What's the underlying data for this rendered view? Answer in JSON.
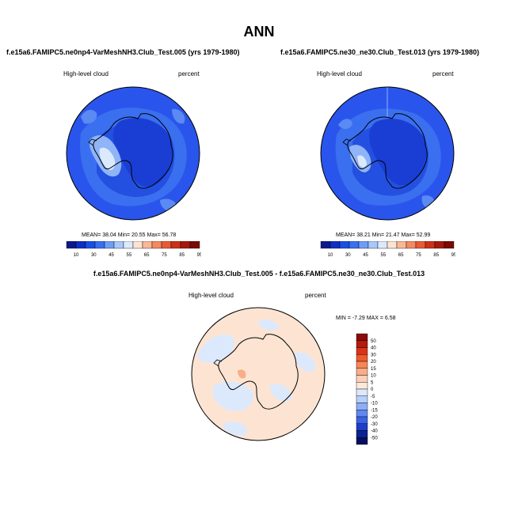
{
  "main_title": "ANN",
  "panels": {
    "left": {
      "title": "f.e15a6.FAMIPC5.ne0np4-VarMeshNH3.Club_Test.005 (yrs 1979-1980)",
      "variable": "High-level cloud",
      "units": "percent",
      "stats": "MEAN=  38.04  Min=  20.55  Max=  56.78"
    },
    "right": {
      "title": "f.e15a6.FAMIPC5.ne30_ne30.Club_Test.013 (yrs 1979-1980)",
      "variable": "High-level cloud",
      "units": "percent",
      "stats": "MEAN=  38.21  Min=  21.47  Max=  52.99"
    },
    "diff": {
      "title": "f.e15a6.FAMIPC5.ne0np4-VarMeshNH3.Club_Test.005 - f.e15a6.FAMIPC5.ne30_ne30.Club_Test.013",
      "variable": "High-level cloud",
      "units": "percent",
      "stats": "MIN =  -7.29 MAX =   6.58"
    }
  },
  "colorbar_top": {
    "labels": [
      "10",
      "30",
      "45",
      "55",
      "65",
      "75",
      "85",
      "95"
    ],
    "colors": [
      "#0a1a8c",
      "#0f2ec4",
      "#1a4fe6",
      "#3a6ff0",
      "#6f9cf5",
      "#a9c8fa",
      "#dce9fd",
      "#fde3d2",
      "#f8b796",
      "#f28a62",
      "#e65a36",
      "#cc2f18",
      "#a6180c",
      "#7a0a05"
    ]
  },
  "colorbar_diff": {
    "labels": [
      "50",
      "40",
      "30",
      "20",
      "15",
      "10",
      "5",
      "0",
      "-5",
      "-10",
      "-15",
      "-20",
      "-30",
      "-40",
      "-50"
    ],
    "colors": [
      "#8a0c06",
      "#b51a0c",
      "#d93418",
      "#f05a2c",
      "#f6855a",
      "#f9ad88",
      "#fcd0b6",
      "#fde9dc",
      "#dce9fd",
      "#b6cffb",
      "#8caef6",
      "#6088f0",
      "#3a62e6",
      "#1c3ec8",
      "#0c2294",
      "#060f5e"
    ]
  },
  "colors": {
    "ocean_blue": "#2a55ec",
    "coast": "#000000",
    "diff_positive": "#fde4d2",
    "diff_negative": "#dce9fd"
  }
}
